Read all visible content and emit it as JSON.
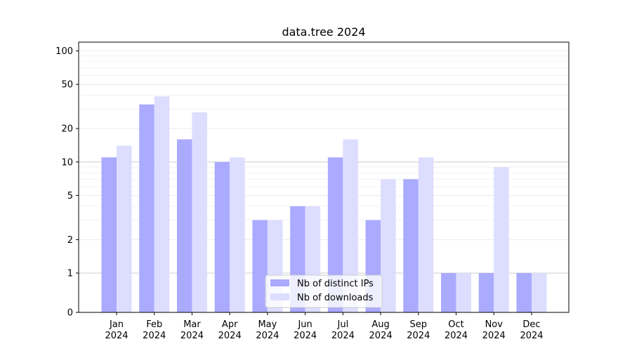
{
  "chart_data": {
    "type": "bar",
    "title": "data.tree 2024",
    "xlabel": "",
    "ylabel": "",
    "y_scale": "symlog",
    "ylim": [
      0,
      120
    ],
    "y_ticks": [
      0,
      1,
      2,
      5,
      10,
      20,
      50,
      100
    ],
    "y_tick_labels": [
      "0",
      "1",
      "2",
      "5",
      "10",
      "20",
      "50",
      "100"
    ],
    "grid": true,
    "legend_position": "bottom-center",
    "categories": [
      {
        "month": "Jan",
        "year": "2024"
      },
      {
        "month": "Feb",
        "year": "2024"
      },
      {
        "month": "Mar",
        "year": "2024"
      },
      {
        "month": "Apr",
        "year": "2024"
      },
      {
        "month": "May",
        "year": "2024"
      },
      {
        "month": "Jun",
        "year": "2024"
      },
      {
        "month": "Jul",
        "year": "2024"
      },
      {
        "month": "Aug",
        "year": "2024"
      },
      {
        "month": "Sep",
        "year": "2024"
      },
      {
        "month": "Oct",
        "year": "2024"
      },
      {
        "month": "Nov",
        "year": "2024"
      },
      {
        "month": "Dec",
        "year": "2024"
      }
    ],
    "series": [
      {
        "name": "Nb of distinct IPs",
        "color": "#aaaaff",
        "values": [
          11,
          33,
          16,
          10,
          3,
          4,
          11,
          3,
          7,
          1,
          1,
          1
        ]
      },
      {
        "name": "Nb of downloads",
        "color": "#ddddff",
        "values": [
          14,
          39,
          28,
          11,
          3,
          4,
          16,
          7,
          11,
          1,
          9,
          1
        ]
      }
    ]
  }
}
